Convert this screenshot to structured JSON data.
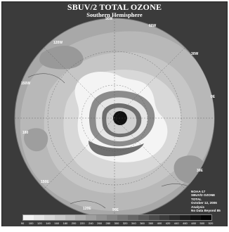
{
  "map": {
    "title": "SBUV/2 TOTAL OZONE",
    "subtitle": "Southern Hemisphere",
    "projection": "polar stereographic (south pole)",
    "longitude_labels": {
      "top": "90W",
      "top_right": "60W",
      "right_upper": "30W",
      "right": "0E",
      "bottom_right": "30E",
      "bottom_mid": "90E",
      "bottom_left": "120E",
      "left_lower": "150E",
      "left": "180",
      "left_upper": "150W",
      "top_left": "120W"
    },
    "info_lines": [
      "NOAA-17",
      "SBUV/2 OZONE",
      "TOTAL",
      "October 12, 2006",
      "Analysis",
      "No Data Beyond 85"
    ],
    "legend": {
      "ticks": [
        "90",
        "100",
        "120",
        "140",
        "160",
        "180",
        "200",
        "220",
        "240",
        "260",
        "280",
        "300",
        "320",
        "340",
        "360",
        "380",
        "400",
        "420",
        "440",
        "460",
        "480",
        "500",
        "520"
      ],
      "colors": [
        "#f2f2f2",
        "#e4e4e4",
        "#d6d6d6",
        "#c8c8c8",
        "#bababa",
        "#acacac",
        "#9e9e9e",
        "#909090",
        "#828282",
        "#747474",
        "#666666",
        "#585858",
        "#4a4a4a",
        "#3c3c3c",
        "#2e2e2e",
        "#202020",
        "#121212",
        "#050505"
      ]
    },
    "colors": {
      "background": "#3b3b3b",
      "hole": "#111111",
      "outer": "#a9a9a9"
    }
  }
}
